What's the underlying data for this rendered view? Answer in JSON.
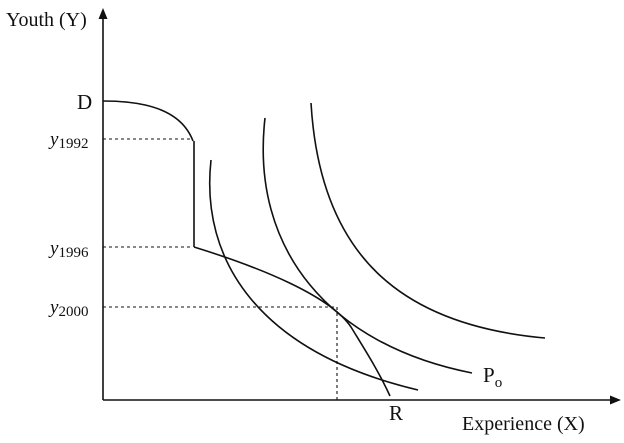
{
  "axes": {
    "y_label": "Youth (Y)",
    "x_label": "Experience (X)"
  },
  "labels": {
    "d": "D",
    "r": "R",
    "po_base": "P",
    "po_sub": "o"
  },
  "ticks": [
    {
      "base": "y",
      "sub": "1992"
    },
    {
      "base": "y",
      "sub": "1996"
    },
    {
      "base": "y",
      "sub": "2000"
    }
  ]
}
